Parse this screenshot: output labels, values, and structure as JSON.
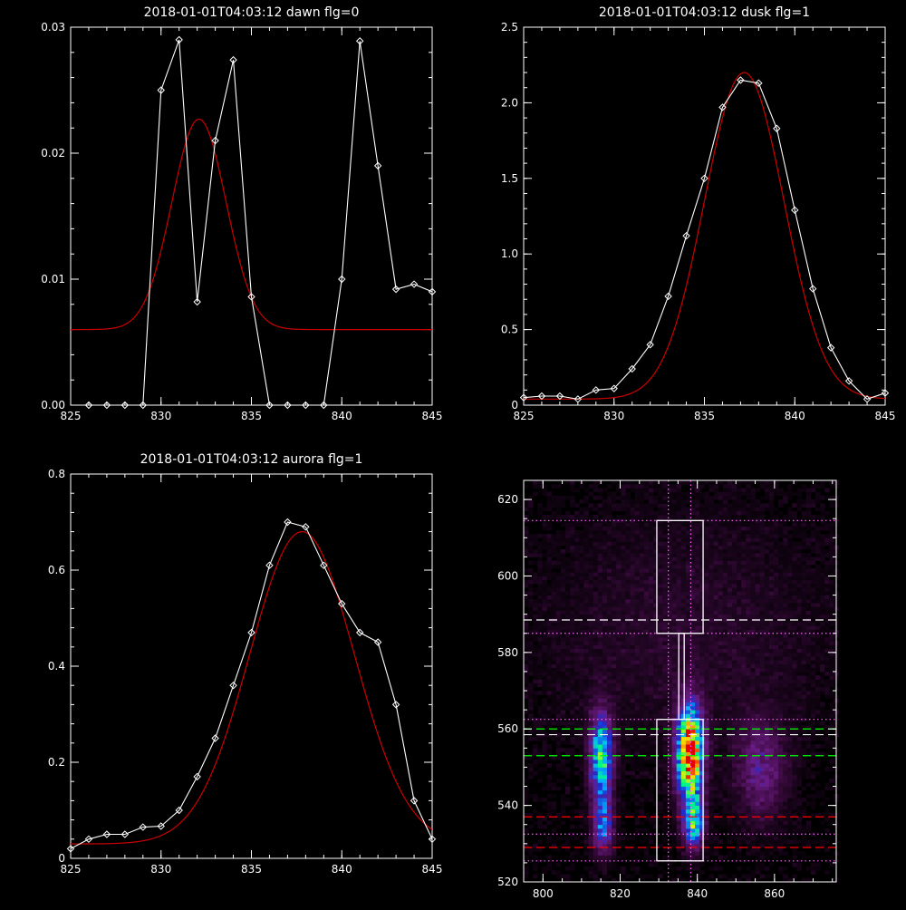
{
  "chart_data": [
    {
      "type": "line",
      "title": "2018-01-01T04:03:12 dawn flg=0",
      "xlim": [
        825,
        845
      ],
      "ylim": [
        0,
        0.03
      ],
      "xticks": [
        "825",
        "830",
        "835",
        "840",
        "845"
      ],
      "yticks": [
        "0.00",
        "0.01",
        "0.02",
        "0.03"
      ],
      "colors": {
        "data": "#ffffff",
        "fit": "#cc0000"
      },
      "series": [
        {
          "x": [
            826,
            827,
            828,
            829,
            830,
            831,
            832,
            833,
            834,
            835,
            836,
            837,
            838,
            839,
            840,
            841,
            842,
            843,
            844,
            845
          ],
          "y": [
            0,
            0,
            0,
            0,
            0.025,
            0.029,
            0.0082,
            0.021,
            0.0274,
            0.0086,
            0,
            0,
            0,
            0,
            0.01,
            0.0289,
            0.019,
            0.0092,
            0.0096,
            0.009
          ],
          "markers": true
        },
        {
          "fit": {
            "offset": 0.006,
            "amplitude": 0.0167,
            "center": 832.1,
            "sigma": 1.5
          },
          "markers": false
        }
      ]
    },
    {
      "type": "line",
      "title": "2018-01-01T04:03:12 dusk flg=1",
      "xlim": [
        825,
        845
      ],
      "ylim": [
        0,
        2.5
      ],
      "xticks": [
        "825",
        "830",
        "835",
        "840",
        "845"
      ],
      "yticks": [
        "0",
        "0.5",
        "1.0",
        "1.5",
        "2.0",
        "2.5"
      ],
      "colors": {
        "data": "#ffffff",
        "fit": "#cc0000"
      },
      "series": [
        {
          "x": [
            825,
            826,
            827,
            828,
            829,
            830,
            831,
            832,
            833,
            834,
            835,
            836,
            837,
            838,
            839,
            840,
            841,
            842,
            843,
            844,
            845
          ],
          "y": [
            0.05,
            0.06,
            0.06,
            0.04,
            0.1,
            0.11,
            0.24,
            0.4,
            0.72,
            1.12,
            1.5,
            1.97,
            2.15,
            2.13,
            1.83,
            1.29,
            0.77,
            0.38,
            0.16,
            0.04,
            0.08
          ],
          "markers": true
        },
        {
          "fit": {
            "offset": 0.04,
            "amplitude": 2.16,
            "center": 837.2,
            "sigma": 2.2
          },
          "markers": false
        }
      ]
    },
    {
      "type": "line",
      "title": "2018-01-01T04:03:12 aurora flg=1",
      "xlim": [
        825,
        845
      ],
      "ylim": [
        0,
        0.8
      ],
      "xticks": [
        "825",
        "830",
        "835",
        "840",
        "845"
      ],
      "yticks": [
        "0",
        "0.2",
        "0.4",
        "0.6",
        "0.8"
      ],
      "colors": {
        "data": "#ffffff",
        "fit": "#cc0000"
      },
      "series": [
        {
          "x": [
            825,
            826,
            827,
            828,
            829,
            830,
            831,
            832,
            833,
            834,
            835,
            836,
            837,
            838,
            839,
            840,
            841,
            842,
            843,
            844,
            845
          ],
          "y": [
            0.02,
            0.04,
            0.05,
            0.05,
            0.065,
            0.067,
            0.1,
            0.17,
            0.25,
            0.36,
            0.47,
            0.61,
            0.7,
            0.69,
            0.61,
            0.53,
            0.47,
            0.45,
            0.32,
            0.12,
            0.04
          ],
          "markers": true
        },
        {
          "fit": {
            "offset": 0.03,
            "amplitude": 0.65,
            "center": 837.8,
            "sigma": 2.9
          },
          "markers": false
        }
      ]
    },
    {
      "type": "heatmap",
      "title": "",
      "xlim": [
        795,
        876
      ],
      "ylim": [
        520,
        625
      ],
      "xticks": [
        "800",
        "820",
        "840",
        "860"
      ],
      "yticks": [
        "520",
        "540",
        "560",
        "580",
        "600",
        "620"
      ],
      "colormap": [
        "#000000",
        "#3a0a3e",
        "#6a1c84",
        "#1e2cd2",
        "#00b4ff",
        "#00ff78",
        "#f0f000",
        "#ff8c00",
        "#e60000"
      ],
      "intensity_blobs": [
        {
          "x": 837.5,
          "y": 553,
          "sx": 2.3,
          "sy": 8.5,
          "peak": 1.0
        },
        {
          "x": 838.5,
          "y": 535,
          "sx": 1.8,
          "sy": 4.5,
          "peak": 0.55
        },
        {
          "x": 814.5,
          "y": 552,
          "sx": 2.0,
          "sy": 8.0,
          "peak": 0.6
        },
        {
          "x": 815.0,
          "y": 534,
          "sx": 1.8,
          "sy": 5.0,
          "peak": 0.38
        },
        {
          "x": 856,
          "y": 549,
          "sx": 4.5,
          "sy": 9.0,
          "peak": 0.22
        },
        {
          "x": 836,
          "y": 585,
          "sx": 25,
          "sy": 22,
          "peak": 0.07
        }
      ],
      "white_boxes": [
        {
          "x0": 829.5,
          "x1": 841.5,
          "y0": 585,
          "y1": 614.5
        },
        {
          "x0": 829.5,
          "x1": 841.5,
          "y0": 525.5,
          "y1": 562.5
        },
        {
          "x0": 835.2,
          "x1": 836.6,
          "y0": 562.5,
          "y1": 585
        }
      ],
      "vertical_dotted_lines": [
        {
          "x": 832.5,
          "color": "#ff60ff"
        },
        {
          "x": 838.3,
          "color": "#ff60ff"
        }
      ],
      "horizontal_lines": [
        {
          "y": 614.5,
          "color": "#ff60ff",
          "style": "dotted"
        },
        {
          "y": 588.5,
          "color": "#ffffff",
          "style": "dashed"
        },
        {
          "y": 585,
          "color": "#ff60ff",
          "style": "dotted"
        },
        {
          "y": 562.5,
          "color": "#ff60ff",
          "style": "dotted"
        },
        {
          "y": 560,
          "color": "#00ff00",
          "style": "dashed"
        },
        {
          "y": 558.5,
          "color": "#ffffff",
          "style": "dashed"
        },
        {
          "y": 553,
          "color": "#00ff00",
          "style": "dashed"
        },
        {
          "y": 537,
          "color": "#ff0000",
          "style": "dashed"
        },
        {
          "y": 532.5,
          "color": "#ff60ff",
          "style": "dotted"
        },
        {
          "y": 529,
          "color": "#ff0000",
          "style": "dashed"
        },
        {
          "y": 525.5,
          "color": "#ff60ff",
          "style": "dotted"
        }
      ]
    }
  ]
}
